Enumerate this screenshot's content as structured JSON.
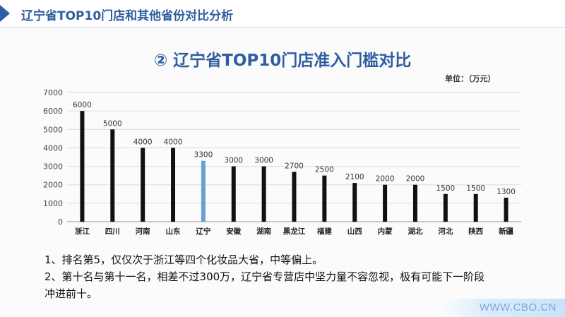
{
  "header": {
    "title": "辽宁省TOP10门店和其他省份对比分析"
  },
  "main_title": "② 辽宁省TOP10门店准入门槛对比",
  "unit_label": "单位：（万元）",
  "chart_data": {
    "type": "bar",
    "categories": [
      "浙江",
      "四川",
      "河南",
      "山东",
      "辽宁",
      "安徽",
      "湖南",
      "黑龙江",
      "福建",
      "山西",
      "内蒙",
      "湖北",
      "河北",
      "陕西",
      "新疆"
    ],
    "values": [
      6000,
      5000,
      4000,
      4000,
      3300,
      3000,
      3000,
      2700,
      2500,
      2100,
      2000,
      2000,
      1500,
      1500,
      1300
    ],
    "ylim": [
      0,
      7000
    ],
    "yticks": [
      0,
      1000,
      2000,
      3000,
      4000,
      5000,
      6000,
      7000
    ],
    "grid": true,
    "bar_color": "#111111",
    "highlight_index": 4,
    "highlight_color": "#6a9fd4",
    "title": "",
    "xlabel": "",
    "ylabel": ""
  },
  "notes": [
    "1、排名第5，仅仅次于浙江等四个化妆品大省，中等偏上。",
    "2、第十名与第十一名，相差不过300万，辽宁省专营店中坚力量不容忽视，极有可能下一阶段",
    "冲进前十。"
  ],
  "watermark": "WWW.CBO.CN"
}
